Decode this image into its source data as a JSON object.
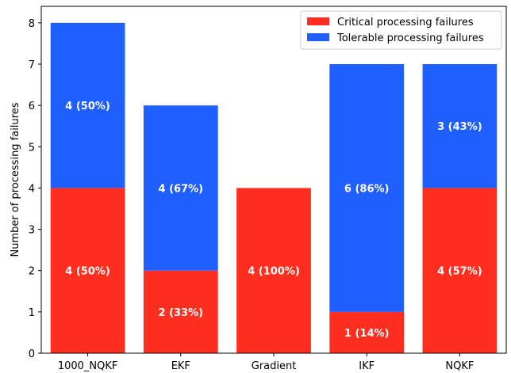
{
  "chart_data": {
    "type": "bar",
    "stacked": true,
    "categories": [
      "1000_NQKF",
      "EKF",
      "Gradient",
      "IKF",
      "NQKF"
    ],
    "series": [
      {
        "name": "Critical processing failures",
        "color": "#ff2e1f",
        "values": [
          4,
          2,
          4,
          1,
          4
        ],
        "labels": [
          "4 (50%)",
          "2 (33%)",
          "4 (100%)",
          "1 (14%)",
          "4 (57%)"
        ]
      },
      {
        "name": "Tolerable processing failures",
        "color": "#1f5fff",
        "values": [
          4,
          4,
          0,
          6,
          3
        ],
        "labels": [
          "4 (50%)",
          "4 (67%)",
          "",
          "6 (86%)",
          "3 (43%)"
        ]
      }
    ],
    "ylabel": "Number of processing failures",
    "xlabel": "",
    "ylim": [
      0,
      8.4
    ],
    "yticks": [
      0,
      1,
      2,
      3,
      4,
      5,
      6,
      7,
      8
    ],
    "legend_position": "top-right",
    "grid": false
  }
}
